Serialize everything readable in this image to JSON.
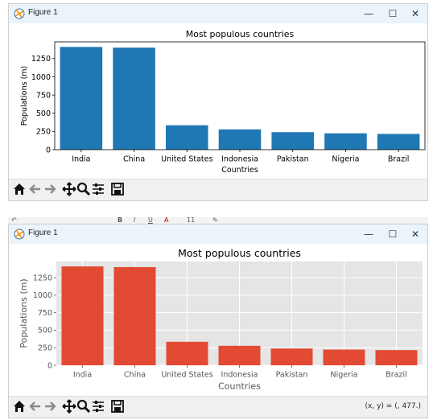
{
  "windows": [
    {
      "title": "Figure 1",
      "window_controls": {
        "minimize": "—",
        "maximize": "☐",
        "close": "✕"
      },
      "status": "",
      "style": "default",
      "colors": {
        "bar": "#1f77b4",
        "panel": "#ffffff",
        "grid": "none",
        "text": "#000000"
      }
    },
    {
      "title": "Figure 1",
      "window_controls": {
        "minimize": "—",
        "maximize": "☐",
        "close": "✕"
      },
      "status": "(x, y) = (, 477.)",
      "style": "ggplot",
      "colors": {
        "bar": "#e24a33",
        "panel": "#e5e5e5",
        "grid": "#ffffff",
        "text": "#555555"
      }
    }
  ],
  "toolbar_icons": [
    "home-icon",
    "back-icon",
    "forward-icon",
    "pan-icon",
    "zoom-icon",
    "configure-icon",
    "save-icon"
  ],
  "background_strip": [
    "↶",
    "B",
    "I",
    "U",
    "A",
    "11",
    "✎"
  ],
  "chart_data": [
    {
      "type": "bar",
      "title": "Most populous countries",
      "xlabel": "Countries",
      "ylabel": "Populations (m)",
      "categories": [
        "India",
        "China",
        "United States",
        "Indonesia",
        "Pakistan",
        "Nigeria",
        "Brazil"
      ],
      "values": [
        1410,
        1400,
        335,
        278,
        240,
        224,
        216
      ],
      "ylim": [
        0,
        1480
      ],
      "yticks": [
        0,
        250,
        500,
        750,
        1000,
        1250
      ],
      "grid": false
    },
    {
      "type": "bar",
      "title": "Most populous countries",
      "xlabel": "Countries",
      "ylabel": "Populations (m)",
      "categories": [
        "India",
        "China",
        "United States",
        "Indonesia",
        "Pakistan",
        "Nigeria",
        "Brazil"
      ],
      "values": [
        1410,
        1400,
        335,
        278,
        240,
        224,
        216
      ],
      "ylim": [
        0,
        1480
      ],
      "yticks": [
        0,
        250,
        500,
        750,
        1000,
        1250
      ],
      "grid": true
    }
  ]
}
